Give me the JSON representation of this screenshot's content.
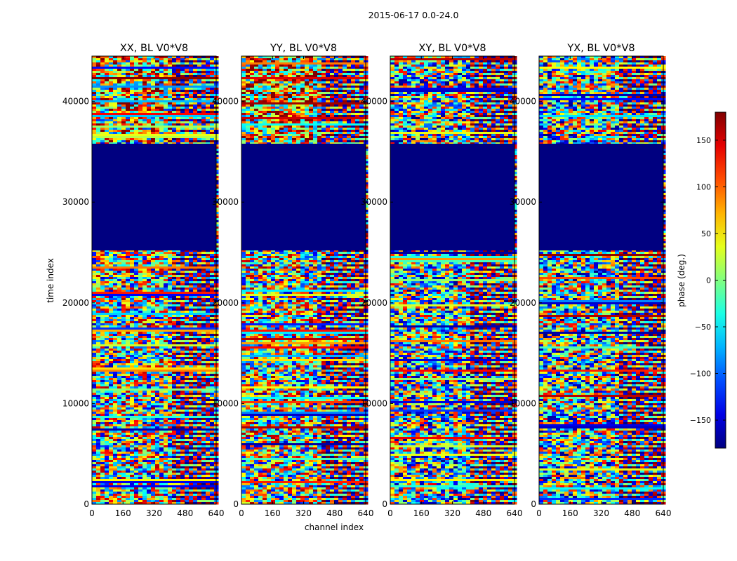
{
  "figure": {
    "suptitle": "2015-06-17 0.0-24.0",
    "xlabel": "channel index",
    "ylabel": "time index"
  },
  "chart_data": {
    "type": "heatmap",
    "title": "2015-06-17 0.0-24.0",
    "xlabel": "channel index",
    "ylabel": "time index",
    "xlim": [
      0,
      640
    ],
    "ylim": [
      0,
      44500
    ],
    "xticks": [
      0,
      160,
      320,
      480,
      640
    ],
    "yticks": [
      0,
      10000,
      20000,
      30000,
      40000
    ],
    "xtick_labels": [
      "0",
      "160",
      "320",
      "480",
      "640"
    ],
    "ytick_labels": [
      "0",
      "10000",
      "20000",
      "30000",
      "40000"
    ],
    "panels": [
      {
        "title": "XX, BL V0*V8",
        "pol": "XX",
        "bias": 0.35
      },
      {
        "title": "YY, BL V0*V8",
        "pol": "YY",
        "bias": 0.45
      },
      {
        "title": "XY, BL V0*V8",
        "pol": "XY",
        "bias": 0.0
      },
      {
        "title": "YX, BL V0*V8",
        "pol": "YX",
        "bias": 0.0
      }
    ],
    "flagged_time_range": [
      25200,
      35800
    ],
    "flagged_value": -180,
    "colorbar": {
      "label": "phase (deg.)",
      "range": [
        -180,
        180
      ],
      "ticks": [
        150,
        100,
        50,
        0,
        -50,
        -100,
        -150
      ],
      "tick_labels": [
        "150",
        "100",
        "50",
        "0",
        "−50",
        "−100",
        "−150"
      ],
      "colormap": "jet"
    }
  }
}
